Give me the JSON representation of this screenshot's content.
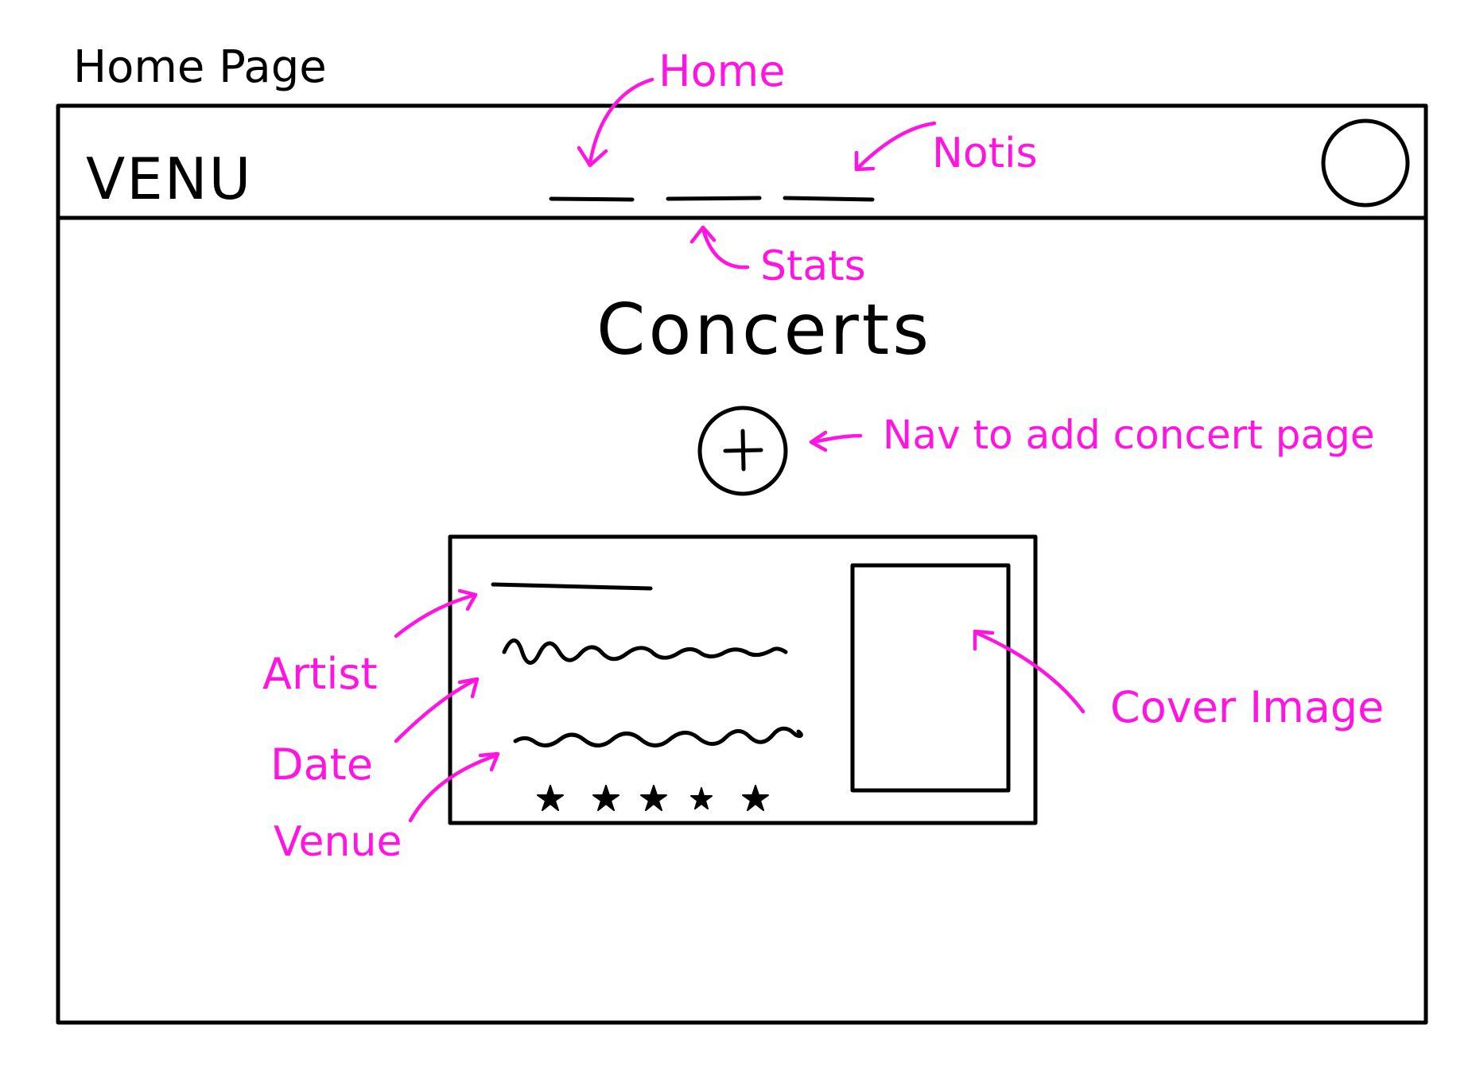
{
  "page_title": "Home Page",
  "app": {
    "logo": "VENU"
  },
  "main": {
    "heading": "Concerts",
    "add_button_symbol": "+"
  },
  "concert_card": {
    "rating_stars": 5,
    "icon_star": "star-icon"
  },
  "annotations": {
    "home": "Home",
    "notis": "Notis",
    "stats": "Stats",
    "add": "Nav to add concert page",
    "artist": "Artist",
    "date": "Date",
    "venue": "Venue",
    "cover": "Cover Image"
  },
  "colors": {
    "ink": "#000000",
    "annotation": "#ff14e0",
    "background": "#ffffff"
  }
}
